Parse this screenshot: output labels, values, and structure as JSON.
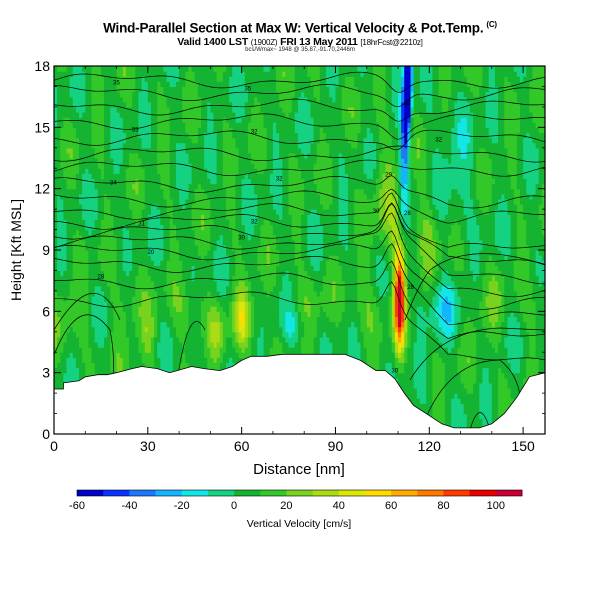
{
  "chart_data": {
    "type": "heatmap",
    "title": "Wind-Parallel Section at Max W: Vertical Velocity & Pot.Temp.",
    "title_mark": "(C)",
    "subtitle_main": "Valid 1400 LST",
    "subtitle_utc": "(1900Z)",
    "subtitle_date": "FRI 13 May 2011",
    "subtitle_run": "[18hrFcst@2210z]",
    "subsubtitle": "bcs/Wmax~ 1948 @ 35.87,-91.70,2446m",
    "xlabel": "Distance [nm]",
    "ylabel": "Height [Kft MSL]",
    "xlim": [
      0,
      157
    ],
    "ylim": [
      0,
      18
    ],
    "x_ticks": [
      0,
      30,
      60,
      90,
      120,
      150
    ],
    "y_ticks": [
      0,
      3,
      6,
      9,
      12,
      15,
      18
    ],
    "x_tick_labels": [
      "0",
      "30",
      "60",
      "90",
      "120",
      "150"
    ],
    "y_tick_labels": [
      "0",
      "3",
      "6",
      "9",
      "12",
      "15",
      "18"
    ],
    "colorbar": {
      "label": "Vertical Velocity [cm/s]",
      "range": [
        -60,
        110
      ],
      "tick_values": [
        -60,
        -40,
        -20,
        0,
        20,
        40,
        60,
        80,
        100
      ],
      "tick_labels": [
        "-60",
        "-40",
        "-20",
        "0",
        "20",
        "40",
        "60",
        "80",
        "100"
      ],
      "colors": [
        "#0000c8",
        "#0a32ff",
        "#1e78ff",
        "#14b4ff",
        "#14e6e6",
        "#14d282",
        "#14b432",
        "#32c828",
        "#78d21e",
        "#aadc14",
        "#dce60a",
        "#ffdc00",
        "#ffaa00",
        "#ff7800",
        "#ff3c00",
        "#e60000",
        "#c80032"
      ]
    },
    "updraft": {
      "x": 110.5,
      "peak_z": 6.3,
      "peak_w": 108
    },
    "downdraft": {
      "x": 111.5,
      "peak_z": 16.5,
      "peak_w": -60
    },
    "terrain_profile": {
      "x": [
        0,
        3,
        3,
        8,
        10,
        14,
        17,
        20,
        25,
        28,
        33,
        37,
        44,
        48,
        53,
        57,
        60,
        63,
        68,
        73,
        83,
        87,
        93,
        98,
        103,
        106,
        109,
        112,
        115,
        120,
        124,
        128,
        132,
        136,
        140,
        144,
        148,
        152,
        157
      ],
      "z": [
        2.2,
        2.2,
        2.5,
        2.6,
        2.8,
        2.9,
        2.9,
        3.0,
        3.2,
        3.3,
        3.2,
        3.0,
        3.3,
        3.2,
        3.1,
        3.3,
        3.6,
        3.8,
        3.8,
        3.9,
        3.9,
        3.9,
        3.9,
        3.6,
        3.1,
        3.1,
        2.7,
        2.0,
        1.4,
        0.9,
        0.5,
        0.3,
        0.3,
        0.3,
        0.5,
        1.0,
        1.8,
        2.8,
        3.0
      ]
    },
    "theta_labels": [
      {
        "x": 20,
        "z": 17.2,
        "text": "35"
      },
      {
        "x": 62,
        "z": 16.9,
        "text": "35"
      },
      {
        "x": 113,
        "z": 16.2,
        "text": "32"
      },
      {
        "x": 26,
        "z": 14.9,
        "text": "33"
      },
      {
        "x": 64,
        "z": 14.8,
        "text": "32"
      },
      {
        "x": 123,
        "z": 14.4,
        "text": "32"
      },
      {
        "x": 19,
        "z": 12.3,
        "text": "34"
      },
      {
        "x": 72,
        "z": 12.5,
        "text": "32"
      },
      {
        "x": 107,
        "z": 12.7,
        "text": "29"
      },
      {
        "x": 28,
        "z": 10.3,
        "text": "31"
      },
      {
        "x": 64,
        "z": 10.4,
        "text": "32"
      },
      {
        "x": 103,
        "z": 10.9,
        "text": "30"
      },
      {
        "x": 113,
        "z": 10.8,
        "text": "28"
      },
      {
        "x": 60,
        "z": 9.6,
        "text": "30"
      },
      {
        "x": 31,
        "z": 8.9,
        "text": "20"
      },
      {
        "x": 15,
        "z": 7.7,
        "text": "28"
      },
      {
        "x": 114,
        "z": 7.2,
        "text": "28"
      },
      {
        "x": 109,
        "z": 3.1,
        "text": "30"
      }
    ]
  }
}
